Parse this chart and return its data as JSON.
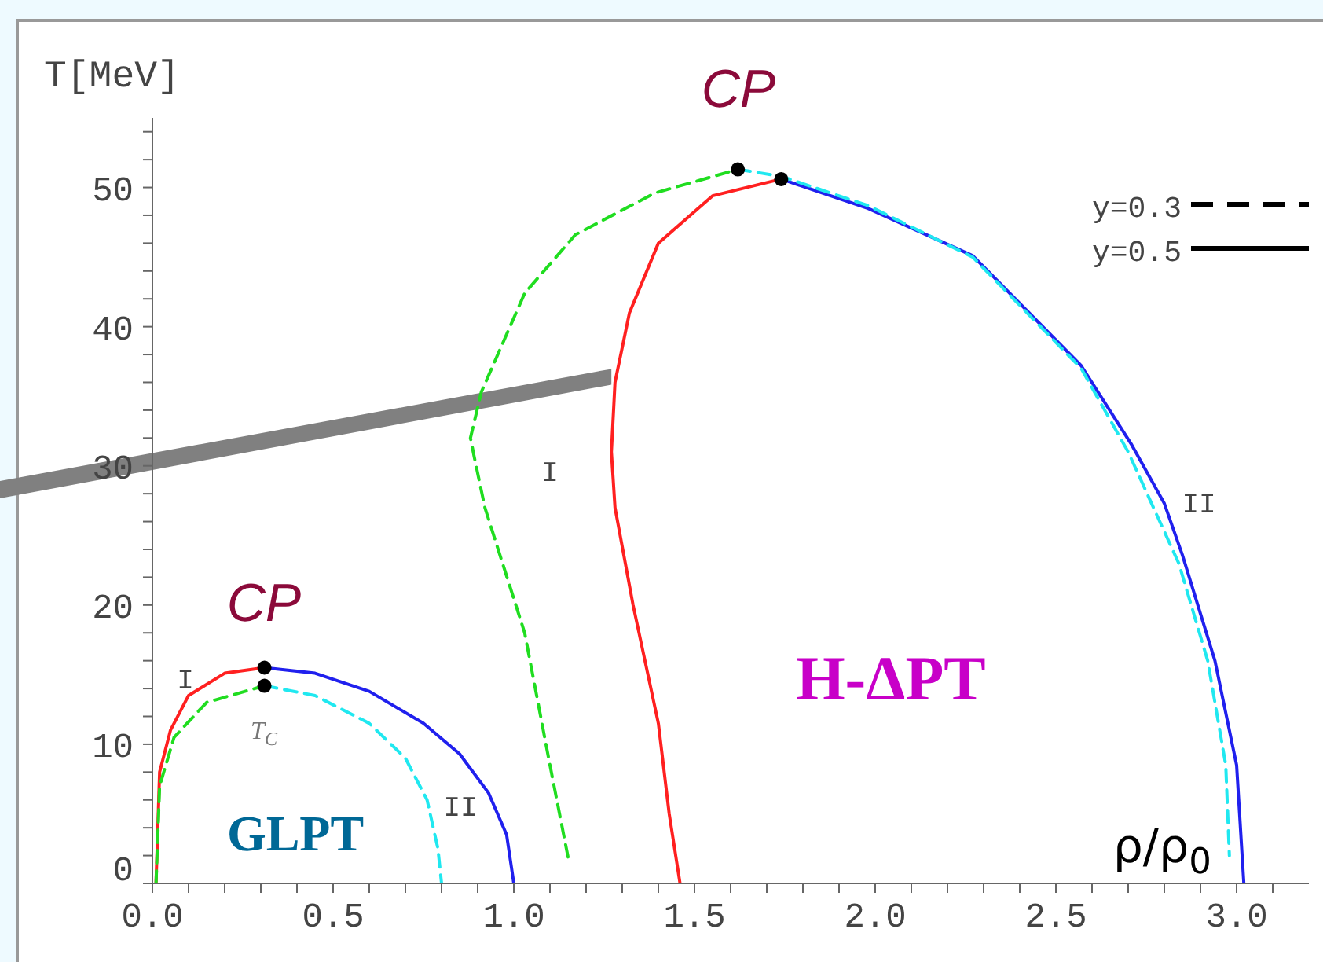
{
  "chart_data": {
    "type": "line",
    "ylabel": "T[MeV]",
    "xlabel": "ρ/ρ$_{0}$",
    "xlim": [
      0,
      3.2
    ],
    "xticks": [
      {
        "value": 0,
        "label": "0.0"
      },
      {
        "value": 0.1,
        "label": null
      },
      {
        "value": 0.2,
        "label": null
      },
      {
        "value": 0.3,
        "label": null
      },
      {
        "value": 0.4,
        "label": null
      },
      {
        "value": 0.5,
        "label": "0.5"
      },
      {
        "value": 0.6,
        "label": null
      },
      {
        "value": 0.7,
        "label": null
      },
      {
        "value": 0.8,
        "label": null
      },
      {
        "value": 0.9,
        "label": null
      },
      {
        "value": 1,
        "label": "1.0"
      },
      {
        "value": 1.1,
        "label": null
      },
      {
        "value": 1.2,
        "label": null
      },
      {
        "value": 1.3,
        "label": null
      },
      {
        "value": 1.4,
        "label": null
      },
      {
        "value": 1.5,
        "label": "1.5"
      },
      {
        "value": 1.6,
        "label": null
      },
      {
        "value": 1.7,
        "label": null
      },
      {
        "value": 1.8,
        "label": null
      },
      {
        "value": 1.9,
        "label": null
      },
      {
        "value": 2,
        "label": "2.0"
      },
      {
        "value": 2.1,
        "label": null
      },
      {
        "value": 2.2,
        "label": null
      },
      {
        "value": 2.3,
        "label": null
      },
      {
        "value": 2.4,
        "label": null
      },
      {
        "value": 2.5,
        "label": "2.5"
      },
      {
        "value": 2.6,
        "label": null
      },
      {
        "value": 2.7,
        "label": null
      },
      {
        "value": 2.8,
        "label": null
      },
      {
        "value": 2.9,
        "label": null
      },
      {
        "value": 3,
        "label": "3.0"
      },
      {
        "value": 3.1,
        "label": null
      }
    ],
    "ylim": [
      0,
      55
    ],
    "yticks": [
      0,
      {
        "value": 2,
        "label": null
      },
      {
        "value": 4,
        "label": null
      },
      {
        "value": 6,
        "label": null
      },
      {
        "value": 8,
        "label": null
      },
      10,
      {
        "value": 12,
        "label": null
      },
      {
        "value": 14,
        "label": null
      },
      {
        "value": 16,
        "label": null
      },
      {
        "value": 18,
        "label": null
      },
      20,
      {
        "value": 22,
        "label": null
      },
      {
        "value": 24,
        "label": null
      },
      {
        "value": 26,
        "label": null
      },
      {
        "value": 28,
        "label": null
      },
      30,
      {
        "value": 32,
        "label": null
      },
      {
        "value": 34,
        "label": null
      },
      {
        "value": 36,
        "label": null
      },
      {
        "value": 38,
        "label": null
      },
      40,
      {
        "value": 42,
        "label": null
      },
      {
        "value": 44,
        "label": null
      },
      {
        "value": 46,
        "label": null
      },
      {
        "value": 48,
        "label": null
      },
      50,
      {
        "value": 52,
        "label": null
      },
      {
        "value": 54,
        "label": null
      }
    ],
    "marker": "none",
    "series": [
      {
        "color": "#ff2020",
        "line_style": "solid",
        "x": [
          0.01,
          0.02,
          0.05,
          0.1,
          0.2,
          0.31
        ],
        "values": [
          0,
          8,
          11,
          13.5,
          15.1,
          15.5
        ]
      },
      {
        "color": "#2020ee",
        "line_style": "solid",
        "x": [
          0.31,
          0.45,
          0.6,
          0.75,
          0.85,
          0.93,
          0.98,
          1.0
        ],
        "values": [
          15.5,
          15.1,
          13.8,
          11.5,
          9.3,
          6.5,
          3.5,
          0
        ]
      },
      {
        "color": "#20dd20",
        "line_style": "dashed",
        "x": [
          0.01,
          0.02,
          0.06,
          0.15,
          0.31
        ],
        "values": [
          0,
          7,
          10.5,
          13,
          14.2
        ]
      },
      {
        "color": "#20e8f0",
        "line_style": "dashed",
        "x": [
          0.31,
          0.45,
          0.6,
          0.7,
          0.76,
          0.79,
          0.8
        ],
        "values": [
          14.2,
          13.5,
          11.5,
          9,
          6,
          2.5,
          0
        ]
      },
      {
        "color": "#ff2020",
        "line_style": "solid",
        "x": [
          1.46,
          1.43,
          1.4,
          1.33,
          1.28,
          1.27,
          1.28,
          1.32,
          1.4,
          1.55,
          1.74
        ],
        "values": [
          0,
          5,
          11.5,
          20,
          27,
          31,
          36,
          41,
          46,
          49.4,
          50.6
        ]
      },
      {
        "color": "#2020ee",
        "line_style": "solid",
        "x": [
          1.74,
          1.98,
          2.27,
          2.57,
          2.71,
          2.8,
          2.85,
          2.94,
          3.0,
          3.02
        ],
        "values": [
          50.6,
          48.5,
          45.1,
          37.2,
          31.5,
          27.3,
          23.6,
          16,
          8.5,
          0
        ]
      },
      {
        "color": "#20dd20",
        "line_style": "dashed",
        "x": [
          1.15,
          1.1,
          1.03,
          0.92,
          0.89,
          0.88,
          0.91,
          1.03,
          1.17,
          1.39,
          1.62
        ],
        "values": [
          1.9,
          8.5,
          18,
          27,
          30.7,
          32,
          35.3,
          42.4,
          46.6,
          49.6,
          51.3
        ]
      },
      {
        "color": "#20e8f0",
        "line_style": "dashed",
        "x": [
          1.62,
          1.74,
          1.98,
          2.27,
          2.57,
          2.7,
          2.84,
          2.92,
          2.97,
          2.98
        ],
        "values": [
          51.3,
          50.8,
          48.7,
          45,
          37,
          31,
          23,
          16,
          8.5,
          2
        ]
      },
      {
        "type": "scatter",
        "color": "#000000",
        "marker": "circle",
        "x": [
          0.31,
          0.31,
          1.62,
          1.74
        ],
        "values": [
          15.5,
          14.2,
          51.3,
          50.6
        ]
      }
    ],
    "annotations": [
      "CP",
      "CP",
      "T$_{C}$",
      "I",
      "II",
      "I",
      "II",
      "GLPT",
      "H-ΔPT",
      "y=0.3",
      "y=0.5"
    ]
  }
}
